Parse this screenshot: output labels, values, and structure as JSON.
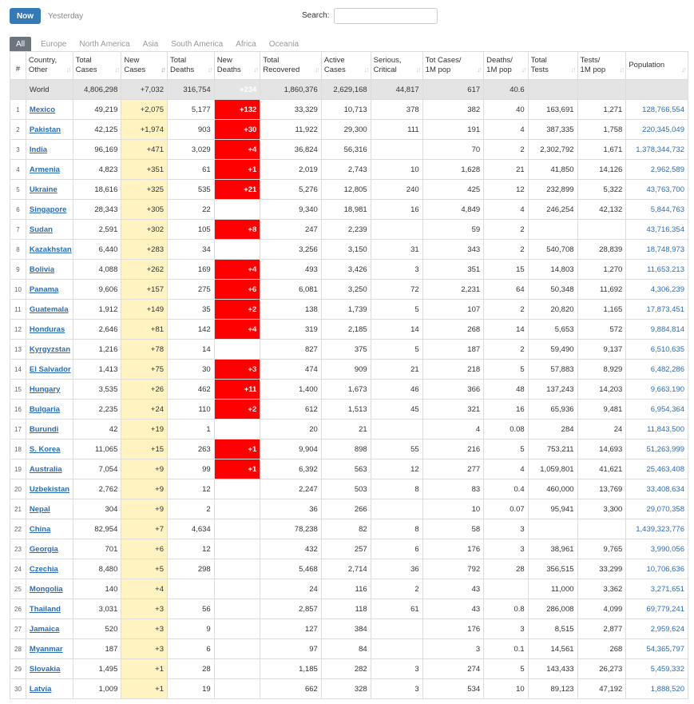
{
  "toolbar": {
    "now_label": "Now",
    "yesterday_label": "Yesterday",
    "search_label": "Search:",
    "search_value": "",
    "search_placeholder": ""
  },
  "regions": [
    "All",
    "Europe",
    "North America",
    "Asia",
    "South America",
    "Africa",
    "Oceania"
  ],
  "columns": [
    [
      "#"
    ],
    [
      "Country,",
      "Other"
    ],
    [
      "Total",
      "Cases"
    ],
    [
      "New",
      "Cases"
    ],
    [
      "Total",
      "Deaths"
    ],
    [
      "New",
      "Deaths"
    ],
    [
      "Total",
      "Recovered"
    ],
    [
      "Active",
      "Cases"
    ],
    [
      "Serious,",
      "Critical"
    ],
    [
      "Tot Cases/",
      "1M pop"
    ],
    [
      "Deaths/",
      "1M pop"
    ],
    [
      "Total",
      "Tests"
    ],
    [
      "Tests/",
      "1M pop"
    ],
    [
      "Population"
    ]
  ],
  "world": [
    "",
    "World",
    "4,806,298",
    "+7,032",
    "316,754",
    "+234",
    "1,860,376",
    "2,629,168",
    "44,817",
    "617",
    "40.6",
    "",
    "",
    ""
  ],
  "rows": [
    [
      "1",
      "Mexico",
      "49,219",
      "+2,075",
      "5,177",
      "+132",
      "33,329",
      "10,713",
      "378",
      "382",
      "40",
      "163,691",
      "1,271",
      "128,766,554"
    ],
    [
      "2",
      "Pakistan",
      "42,125",
      "+1,974",
      "903",
      "+30",
      "11,922",
      "29,300",
      "111",
      "191",
      "4",
      "387,335",
      "1,758",
      "220,345,049"
    ],
    [
      "3",
      "India",
      "96,169",
      "+471",
      "3,029",
      "+4",
      "36,824",
      "56,316",
      "",
      "70",
      "2",
      "2,302,792",
      "1,671",
      "1,378,344,732"
    ],
    [
      "4",
      "Armenia",
      "4,823",
      "+351",
      "61",
      "+1",
      "2,019",
      "2,743",
      "10",
      "1,628",
      "21",
      "41,850",
      "14,126",
      "2,962,589"
    ],
    [
      "5",
      "Ukraine",
      "18,616",
      "+325",
      "535",
      "+21",
      "5,276",
      "12,805",
      "240",
      "425",
      "12",
      "232,899",
      "5,322",
      "43,763,700"
    ],
    [
      "6",
      "Singapore",
      "28,343",
      "+305",
      "22",
      "",
      "9,340",
      "18,981",
      "16",
      "4,849",
      "4",
      "246,254",
      "42,132",
      "5,844,763"
    ],
    [
      "7",
      "Sudan",
      "2,591",
      "+302",
      "105",
      "+8",
      "247",
      "2,239",
      "",
      "59",
      "2",
      "",
      "",
      "43,716,354"
    ],
    [
      "8",
      "Kazakhstan",
      "6,440",
      "+283",
      "34",
      "",
      "3,256",
      "3,150",
      "31",
      "343",
      "2",
      "540,708",
      "28,839",
      "18,748,973"
    ],
    [
      "9",
      "Bolivia",
      "4,088",
      "+262",
      "169",
      "+4",
      "493",
      "3,426",
      "3",
      "351",
      "15",
      "14,803",
      "1,270",
      "11,653,213"
    ],
    [
      "10",
      "Panama",
      "9,606",
      "+157",
      "275",
      "+6",
      "6,081",
      "3,250",
      "72",
      "2,231",
      "64",
      "50,348",
      "11,692",
      "4,306,239"
    ],
    [
      "11",
      "Guatemala",
      "1,912",
      "+149",
      "35",
      "+2",
      "138",
      "1,739",
      "5",
      "107",
      "2",
      "20,820",
      "1,165",
      "17,873,451"
    ],
    [
      "12",
      "Honduras",
      "2,646",
      "+81",
      "142",
      "+4",
      "319",
      "2,185",
      "14",
      "268",
      "14",
      "5,653",
      "572",
      "9,884,814"
    ],
    [
      "13",
      "Kyrgyzstan",
      "1,216",
      "+78",
      "14",
      "",
      "827",
      "375",
      "5",
      "187",
      "2",
      "59,490",
      "9,137",
      "6,510,635"
    ],
    [
      "14",
      "El Salvador",
      "1,413",
      "+75",
      "30",
      "+3",
      "474",
      "909",
      "21",
      "218",
      "5",
      "57,883",
      "8,929",
      "6,482,286"
    ],
    [
      "15",
      "Hungary",
      "3,535",
      "+26",
      "462",
      "+11",
      "1,400",
      "1,673",
      "46",
      "366",
      "48",
      "137,243",
      "14,203",
      "9,663,190"
    ],
    [
      "16",
      "Bulgaria",
      "2,235",
      "+24",
      "110",
      "+2",
      "612",
      "1,513",
      "45",
      "321",
      "16",
      "65,936",
      "9,481",
      "6,954,364"
    ],
    [
      "17",
      "Burundi",
      "42",
      "+19",
      "1",
      "",
      "20",
      "21",
      "",
      "4",
      "0.08",
      "284",
      "24",
      "11,843,500"
    ],
    [
      "18",
      "S. Korea",
      "11,065",
      "+15",
      "263",
      "+1",
      "9,904",
      "898",
      "55",
      "216",
      "5",
      "753,211",
      "14,693",
      "51,263,999"
    ],
    [
      "19",
      "Australia",
      "7,054",
      "+9",
      "99",
      "+1",
      "6,392",
      "563",
      "12",
      "277",
      "4",
      "1,059,801",
      "41,621",
      "25,463,408"
    ],
    [
      "20",
      "Uzbekistan",
      "2,762",
      "+9",
      "12",
      "",
      "2,247",
      "503",
      "8",
      "83",
      "0.4",
      "460,000",
      "13,769",
      "33,408,634"
    ],
    [
      "21",
      "Nepal",
      "304",
      "+9",
      "2",
      "",
      "36",
      "266",
      "",
      "10",
      "0.07",
      "95,941",
      "3,300",
      "29,070,358"
    ],
    [
      "22",
      "China",
      "82,954",
      "+7",
      "4,634",
      "",
      "78,238",
      "82",
      "8",
      "58",
      "3",
      "",
      "",
      "1,439,323,776"
    ],
    [
      "23",
      "Georgia",
      "701",
      "+6",
      "12",
      "",
      "432",
      "257",
      "6",
      "176",
      "3",
      "38,961",
      "9,765",
      "3,990,056"
    ],
    [
      "24",
      "Czechia",
      "8,480",
      "+5",
      "298",
      "",
      "5,468",
      "2,714",
      "36",
      "792",
      "28",
      "356,515",
      "33,299",
      "10,706,636"
    ],
    [
      "25",
      "Mongolia",
      "140",
      "+4",
      "",
      "",
      "24",
      "116",
      "2",
      "43",
      "",
      "11,000",
      "3,362",
      "3,271,651"
    ],
    [
      "26",
      "Thailand",
      "3,031",
      "+3",
      "56",
      "",
      "2,857",
      "118",
      "61",
      "43",
      "0.8",
      "286,008",
      "4,099",
      "69,779,241"
    ],
    [
      "27",
      "Jamaica",
      "520",
      "+3",
      "9",
      "",
      "127",
      "384",
      "",
      "176",
      "3",
      "8,515",
      "2,877",
      "2,959,624"
    ],
    [
      "28",
      "Myanmar",
      "187",
      "+3",
      "6",
      "",
      "97",
      "84",
      "",
      "3",
      "0.1",
      "14,561",
      "268",
      "54,365,797"
    ],
    [
      "29",
      "Slovakia",
      "1,495",
      "+1",
      "28",
      "",
      "1,185",
      "282",
      "3",
      "274",
      "5",
      "143,433",
      "26,273",
      "5,459,332"
    ],
    [
      "30",
      "Latvia",
      "1,009",
      "+1",
      "19",
      "",
      "662",
      "328",
      "3",
      "534",
      "10",
      "89,123",
      "47,192",
      "1,888,520"
    ]
  ]
}
